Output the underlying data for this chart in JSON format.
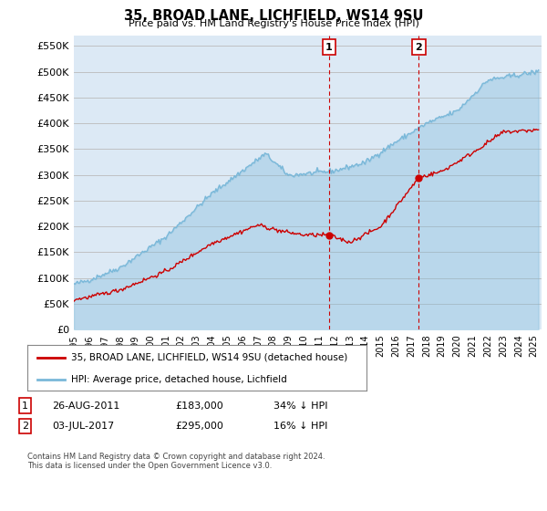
{
  "title": "35, BROAD LANE, LICHFIELD, WS14 9SU",
  "subtitle": "Price paid vs. HM Land Registry's House Price Index (HPI)",
  "ylabel_ticks": [
    "£0",
    "£50K",
    "£100K",
    "£150K",
    "£200K",
    "£250K",
    "£300K",
    "£350K",
    "£400K",
    "£450K",
    "£500K",
    "£550K"
  ],
  "ytick_values": [
    0,
    50000,
    100000,
    150000,
    200000,
    250000,
    300000,
    350000,
    400000,
    450000,
    500000,
    550000
  ],
  "ylim": [
    0,
    570000
  ],
  "xlim_start": 1995.0,
  "xlim_end": 2025.5,
  "marker1_x": 2011.65,
  "marker1_y": 183000,
  "marker2_x": 2017.5,
  "marker2_y": 295000,
  "legend_line1": "35, BROAD LANE, LICHFIELD, WS14 9SU (detached house)",
  "legend_line2": "HPI: Average price, detached house, Lichfield",
  "footnote": "Contains HM Land Registry data © Crown copyright and database right 2024.\nThis data is licensed under the Open Government Licence v3.0.",
  "hpi_color": "#7ab8d9",
  "hpi_fill": "#c5dff0",
  "price_color": "#cc0000",
  "marker_color": "#cc0000",
  "vline_color": "#cc0000",
  "background_color": "#dce9f5",
  "plot_bg": "#ffffff",
  "grid_color": "#bbbbbb"
}
